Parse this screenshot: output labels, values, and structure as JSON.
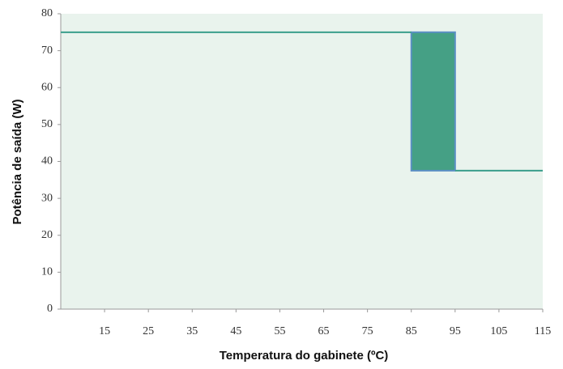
{
  "chart_data": {
    "type": "line",
    "xlabel": "Temperatura do gabinete (ºC)",
    "ylabel": "Potência de saída (W)",
    "xlim": [
      5,
      115
    ],
    "xticks": [
      15,
      25,
      35,
      45,
      55,
      65,
      75,
      85,
      95,
      105,
      115
    ],
    "ylim": [
      0,
      80
    ],
    "yticks": [
      0,
      10,
      20,
      30,
      40,
      50,
      60,
      70,
      80
    ],
    "grid": false,
    "background": "#e9f3ed",
    "series": [
      {
        "color": "#3a9e8c",
        "x": [
          5,
          85
        ],
        "values": [
          75,
          75
        ]
      },
      {
        "color": "#3a9e8c",
        "x": [
          95,
          115
        ],
        "values": [
          37.5,
          37.5
        ]
      }
    ],
    "band": {
      "x": [
        85,
        95
      ],
      "y": [
        37.5,
        75
      ],
      "color": "#45a085",
      "edge": "#5b8fc4"
    }
  }
}
